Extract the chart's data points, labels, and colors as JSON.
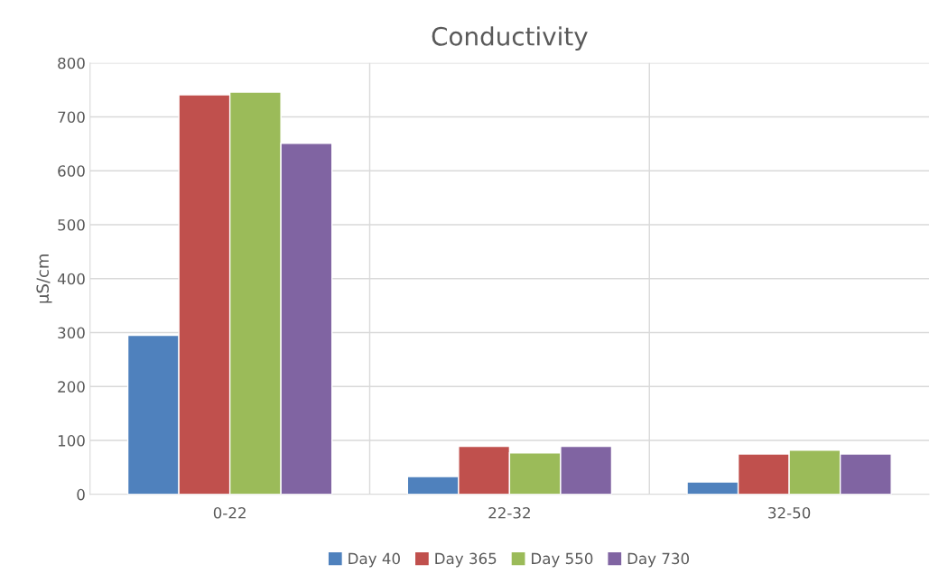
{
  "chart_data": {
    "type": "bar",
    "title": "Conductivity",
    "ylabel": "µS/cm",
    "categories": [
      "0-22",
      "22-32",
      "32-50"
    ],
    "series": [
      {
        "name": "Day 40",
        "color": "#4f81bd",
        "values": [
          295,
          33,
          23
        ]
      },
      {
        "name": "Day 365",
        "color": "#c0504d",
        "values": [
          741,
          89,
          75
        ]
      },
      {
        "name": "Day 550",
        "color": "#9bbb59",
        "values": [
          746,
          77,
          82
        ]
      },
      {
        "name": "Day 730",
        "color": "#8064a2",
        "values": [
          651,
          89,
          75
        ]
      }
    ],
    "ylim": [
      0,
      800
    ],
    "yticks": [
      0,
      100,
      200,
      300,
      400,
      500,
      600,
      700,
      800
    ],
    "grid": true,
    "legend": "bottom"
  }
}
